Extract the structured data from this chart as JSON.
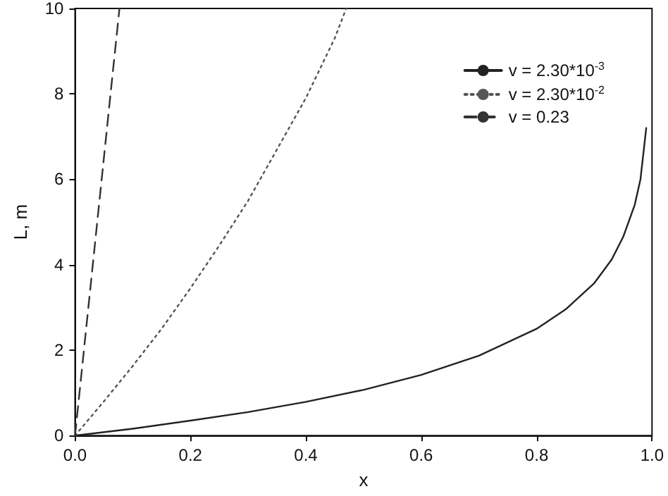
{
  "chart_data": {
    "type": "line",
    "xlabel": "x",
    "ylabel": "L, m",
    "xlim": [
      0,
      1
    ],
    "xticks": [
      {
        "value": 0,
        "label": "0.0"
      },
      {
        "value": 0.2,
        "label": "0.2"
      },
      {
        "value": 0.4,
        "label": "0.4"
      },
      {
        "value": 0.6,
        "label": "0.6"
      },
      {
        "value": 0.8,
        "label": "0.8"
      },
      {
        "value": 1,
        "label": "1.0"
      }
    ],
    "ylim": [
      0,
      10
    ],
    "yticks": [
      0,
      2,
      4,
      6,
      8,
      10
    ],
    "grid": false,
    "legend": "top right",
    "marker": "none",
    "series": [
      {
        "name": "v = 2.30*10$^{-3}$",
        "color": "#222222",
        "line_style": "solid",
        "x": [
          0,
          0.1,
          0.2,
          0.3,
          0.4,
          0.5,
          0.6,
          0.7,
          0.8,
          0.85,
          0.9,
          0.93,
          0.95,
          0.97,
          0.98,
          0.99
        ],
        "values": [
          0,
          0.16,
          0.35,
          0.55,
          0.79,
          1.07,
          1.42,
          1.87,
          2.5,
          2.95,
          3.57,
          4.12,
          4.65,
          5.4,
          6.0,
          7.2
        ]
      },
      {
        "name": "v = 2.30*10$^{-2}$",
        "color": "#555555",
        "line_style": "dotted",
        "x": [
          0,
          0.05,
          0.1,
          0.15,
          0.2,
          0.25,
          0.3,
          0.35,
          0.4,
          0.45,
          0.47
        ],
        "values": [
          0,
          0.8,
          1.63,
          2.5,
          3.45,
          4.45,
          5.5,
          6.7,
          7.9,
          9.3,
          10
        ]
      },
      {
        "name": "v = 0.23",
        "color": "#333333",
        "line_style": "dashed",
        "x": [
          0,
          0.02,
          0.04,
          0.06,
          0.077
        ],
        "values": [
          0,
          2.6,
          5.2,
          7.8,
          10
        ]
      }
    ]
  }
}
